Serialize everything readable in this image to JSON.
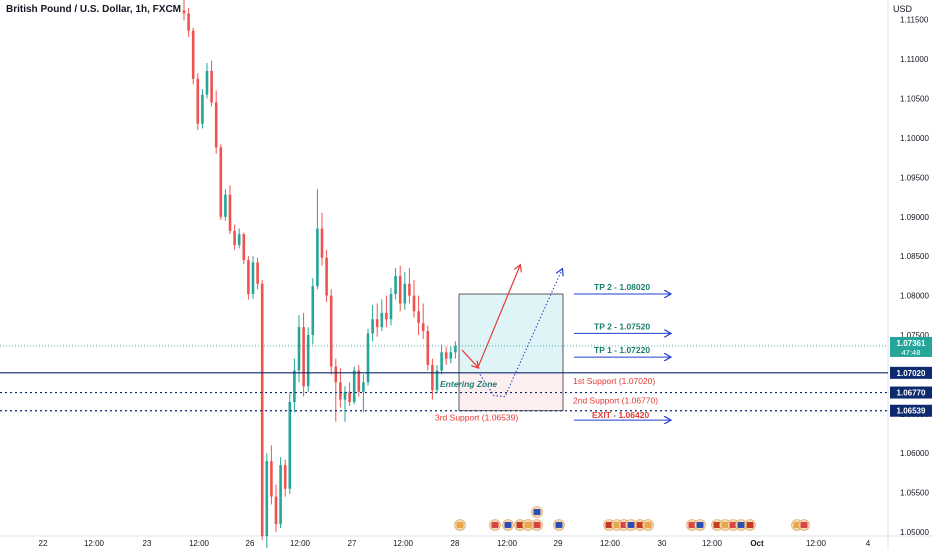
{
  "header": {
    "title": "British Pound / U.S. Dollar, 1h, FXCM",
    "currency": "USD"
  },
  "colors": {
    "up": "#26a69a",
    "down": "#ef5350",
    "navy": "#0d2a6e",
    "blue_arrow": "#1e3fd0",
    "zone_fill": "#dff4f7",
    "zone_stroke": "#333333",
    "red_text": "#e53935",
    "teal_text": "#1b7e6f"
  },
  "chart_data": {
    "type": "candlestick",
    "symbol": "GBPUSD",
    "timeframe": "1h",
    "x_ticks": [
      "22",
      "12:00",
      "23",
      "12:00",
      "26",
      "12:00",
      "27",
      "12:00",
      "28",
      "12:00",
      "29",
      "12:00",
      "30",
      "12:00",
      "Oct",
      "12:00",
      "4"
    ],
    "y_ticks": [
      "1.11500",
      "1.11000",
      "1.10500",
      "1.10000",
      "1.09500",
      "1.09000",
      "1.08500",
      "1.08000",
      "1.07500",
      "1.06500",
      "1.06000",
      "1.05500",
      "1.05000"
    ],
    "ylim": [
      1.0495,
      1.1175
    ],
    "last_price": {
      "value": "1.07361",
      "countdown": "47:48",
      "price": 1.07361
    },
    "levels": [
      {
        "label": "1.07020",
        "price": 1.0702,
        "style": "solid"
      },
      {
        "label": "1.06770",
        "price": 1.0677,
        "style": "dotted"
      },
      {
        "label": "1.06539",
        "price": 1.06539,
        "style": "dotted"
      }
    ],
    "annotations": {
      "tp2_upper": {
        "text": "TP 2 - 1.08020",
        "price": 1.0802
      },
      "tp2_lower": {
        "text": "TP 2 - 1.07520",
        "price": 1.0752
      },
      "tp1": {
        "text": "TP 1 - 1.07220",
        "price": 1.0722
      },
      "support1": {
        "text": "1st Support (1.07020)",
        "price": 1.0702
      },
      "support2": {
        "text": "2nd Support (1.06770)",
        "price": 1.0677
      },
      "exit": {
        "text": "EXIT - 1.06420",
        "price": 1.0642
      },
      "support3": {
        "text": "3rd Support (1.06539)",
        "price": 1.06539
      },
      "entering_zone": {
        "text": "Entering Zone"
      }
    },
    "candles": [
      [
        1.1162,
        1.1176,
        1.1149,
        1.1158
      ],
      [
        1.1158,
        1.1165,
        1.1128,
        1.1136
      ],
      [
        1.1136,
        1.114,
        1.1068,
        1.1075
      ],
      [
        1.1075,
        1.1082,
        1.101,
        1.1018
      ],
      [
        1.1018,
        1.1062,
        1.1012,
        1.1055
      ],
      [
        1.1055,
        1.1095,
        1.105,
        1.1085
      ],
      [
        1.1085,
        1.1098,
        1.104,
        1.1045
      ],
      [
        1.1045,
        1.106,
        1.098,
        1.0988
      ],
      [
        1.0988,
        1.0992,
        1.0896,
        1.09
      ],
      [
        1.09,
        1.0935,
        1.0895,
        1.0928
      ],
      [
        1.0928,
        1.094,
        1.0878,
        1.0882
      ],
      [
        1.0882,
        1.089,
        1.0858,
        1.0864
      ],
      [
        1.0864,
        1.0885,
        1.086,
        1.0878
      ],
      [
        1.0878,
        1.088,
        1.084,
        1.0845
      ],
      [
        1.0845,
        1.085,
        1.0795,
        1.0802
      ],
      [
        1.0802,
        1.085,
        1.0796,
        1.0842
      ],
      [
        1.0842,
        1.0848,
        1.0808,
        1.0815
      ],
      [
        1.0815,
        1.082,
        1.049,
        1.0495
      ],
      [
        1.0495,
        1.06,
        1.048,
        1.059
      ],
      [
        1.059,
        1.061,
        1.0535,
        1.0545
      ],
      [
        1.0545,
        1.056,
        1.05,
        1.051
      ],
      [
        1.051,
        1.0595,
        1.0505,
        1.0585
      ],
      [
        1.0585,
        1.0592,
        1.0545,
        1.0555
      ],
      [
        1.0555,
        1.0678,
        1.0548,
        1.0665
      ],
      [
        1.0665,
        1.072,
        1.0652,
        1.0705
      ],
      [
        1.0705,
        1.0775,
        1.069,
        1.076
      ],
      [
        1.076,
        1.0778,
        1.0672,
        1.0685
      ],
      [
        1.0685,
        1.076,
        1.0678,
        1.075
      ],
      [
        1.075,
        1.0822,
        1.0738,
        1.0812
      ],
      [
        1.0812,
        1.0935,
        1.0808,
        1.0885
      ],
      [
        1.0885,
        1.0905,
        1.0838,
        1.0848
      ],
      [
        1.0848,
        1.0858,
        1.0792,
        1.08
      ],
      [
        1.08,
        1.0808,
        1.07,
        1.071
      ],
      [
        1.071,
        1.072,
        1.064,
        1.069
      ],
      [
        1.069,
        1.0708,
        1.0658,
        1.0668
      ],
      [
        1.0668,
        1.0685,
        1.064,
        1.0678
      ],
      [
        1.0678,
        1.069,
        1.066,
        1.0665
      ],
      [
        1.0665,
        1.071,
        1.0662,
        1.0705
      ],
      [
        1.0705,
        1.0712,
        1.0672,
        1.0678
      ],
      [
        1.0678,
        1.07,
        1.0652,
        1.069
      ],
      [
        1.069,
        1.0758,
        1.0686,
        1.0752
      ],
      [
        1.0752,
        1.0788,
        1.0742,
        1.077
      ],
      [
        1.077,
        1.079,
        1.0748,
        1.076
      ],
      [
        1.076,
        1.0795,
        1.0755,
        1.0778
      ],
      [
        1.0778,
        1.08,
        1.076,
        1.077
      ],
      [
        1.077,
        1.081,
        1.0762,
        1.0802
      ],
      [
        1.0802,
        1.0835,
        1.0795,
        1.0825
      ],
      [
        1.0825,
        1.0838,
        1.078,
        1.079
      ],
      [
        1.079,
        1.083,
        1.0782,
        1.0815
      ],
      [
        1.0815,
        1.0835,
        1.079,
        1.08
      ],
      [
        1.08,
        1.082,
        1.0772,
        1.078
      ],
      [
        1.078,
        1.08,
        1.075,
        1.0765
      ],
      [
        1.0765,
        1.079,
        1.0745,
        1.0755
      ],
      [
        1.0755,
        1.0762,
        1.0705,
        1.0712
      ],
      [
        1.0712,
        1.072,
        1.0668,
        1.068
      ],
      [
        1.068,
        1.0712,
        1.0676,
        1.0705
      ],
      [
        1.0705,
        1.0738,
        1.07,
        1.0728
      ],
      [
        1.0728,
        1.0735,
        1.0712,
        1.072
      ],
      [
        1.072,
        1.0735,
        1.0714,
        1.0728
      ],
      [
        1.0728,
        1.0742,
        1.072,
        1.0736
      ]
    ],
    "x_markers": {
      "icons": 22,
      "colors": [
        "#e8a64a",
        "#d94545",
        "#2d4fb3",
        "#c23b22"
      ]
    }
  }
}
